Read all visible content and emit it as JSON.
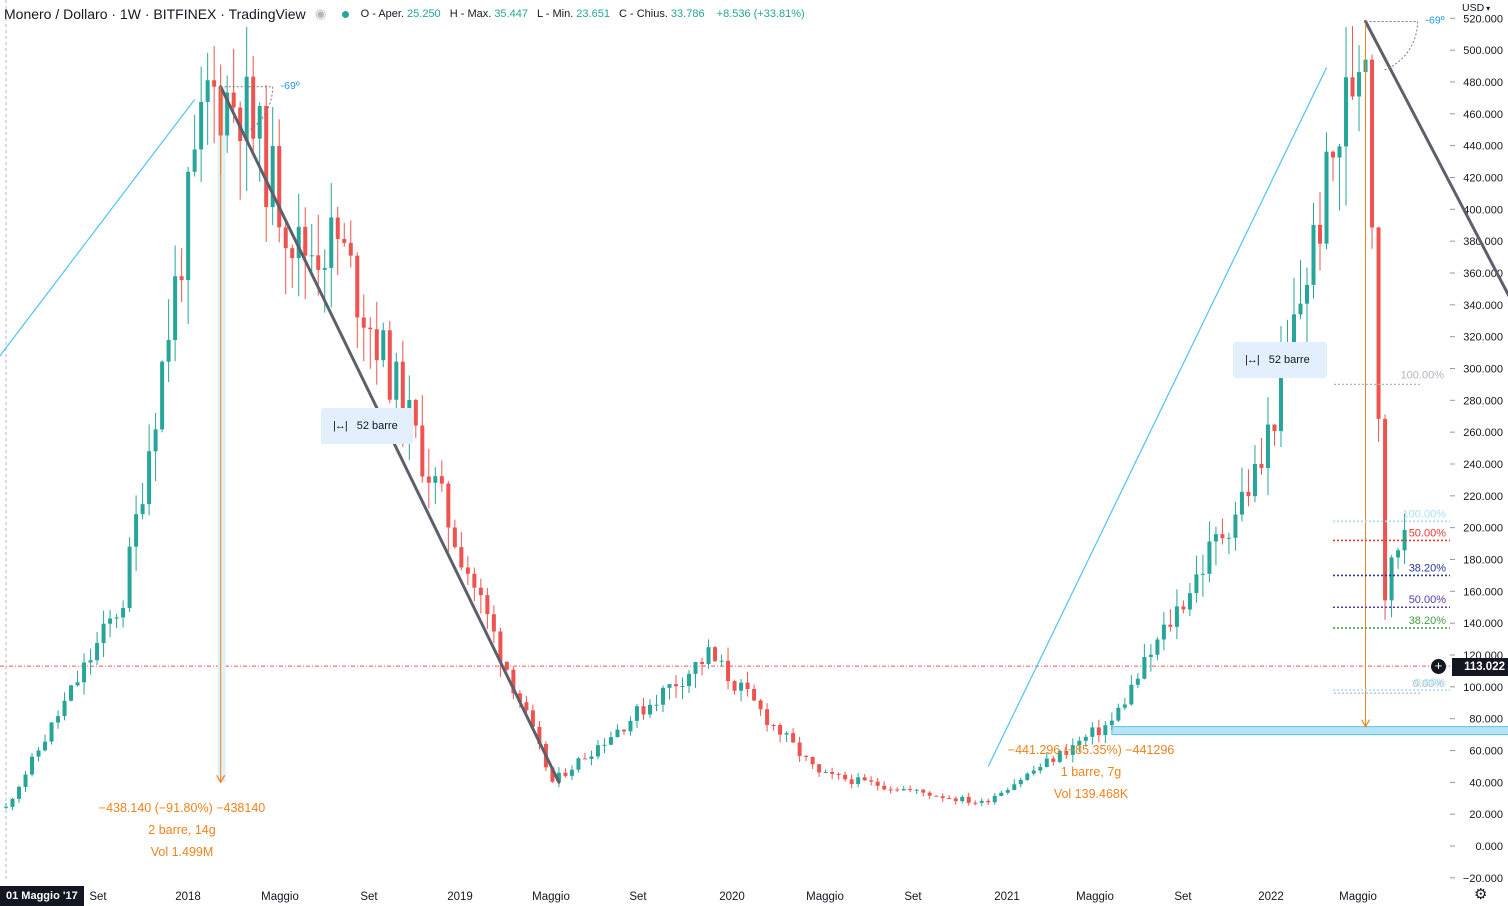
{
  "header": {
    "symbol": "Monero / Dollaro · 1W · BITFINEX · TradingView",
    "open_label": "O - Aper.",
    "open": "25.250",
    "high_label": "H - Max.",
    "high": "35.447",
    "low_label": "L - Min.",
    "low": "23.651",
    "close_label": "C - Chius.",
    "close": "33.786",
    "change": "+8.536 (+33.81%)"
  },
  "currency": "USD",
  "current_price": "113.022",
  "price_axis_ticks": [
    "520.000",
    "500.000",
    "480.000",
    "460.000",
    "440.000",
    "420.000",
    "400.000",
    "380.000",
    "360.000",
    "340.000",
    "320.000",
    "300.000",
    "280.000",
    "260.000",
    "240.000",
    "220.000",
    "200.000",
    "180.000",
    "160.000",
    "140.000",
    "120.000",
    "100.000",
    "80.000",
    "60.000",
    "40.000",
    "20.000",
    "0.000",
    "−20.000"
  ],
  "time_axis": {
    "first_badge": "01 Maggio '17",
    "labels": [
      "Set",
      "2018",
      "Maggio",
      "Set",
      "2019",
      "Maggio",
      "Set",
      "2020",
      "Maggio",
      "Set",
      "2021",
      "Maggio",
      "Set",
      "2022",
      "Maggio"
    ]
  },
  "annotations": {
    "angle_1": "-69º",
    "angle_2": "-69º",
    "bars_box_1": "52 barre",
    "bars_box_2": "52 barre",
    "measure_1": [
      "−438.140 (−91.80%) −438140",
      "2 barre, 14g",
      "Vol 1.499M"
    ],
    "measure_2": [
      "−441.296 (−85.35%) −441296",
      "1 barre, 7g",
      "Vol 139.468K"
    ]
  },
  "fib_large": [
    {
      "label": "100.00%",
      "price": 290,
      "color": "#b2b5be"
    },
    {
      "label": "0.00%",
      "price": 96,
      "color": "#b2b5be"
    }
  ],
  "fib_small": [
    {
      "label": "100.00%",
      "price": 204,
      "color": "#a8dff5"
    },
    {
      "label": "50.00%",
      "price": 192,
      "color": "#e53935"
    },
    {
      "label": "38.20%",
      "price": 170,
      "color": "#283593"
    },
    {
      "label": "50.00%",
      "price": 150,
      "color": "#5e35b1"
    },
    {
      "label": "38.20%",
      "price": 137,
      "color": "#43a047"
    },
    {
      "label": "0.00%",
      "price": 98,
      "color": "#a8dff5"
    }
  ],
  "chart_data": {
    "type": "candlestick",
    "title": "Monero / Dollaro · 1W · BITFINEX",
    "ylim": [
      -20,
      520
    ],
    "x_range": [
      "2017-05-01",
      "2022-07-18"
    ],
    "colors": {
      "up": "#26a69a",
      "down": "#ef5350",
      "trendline": "#5d606b",
      "support": "#4fc3f7",
      "zone": "#b9e4f5",
      "pivot": "#f0821e"
    },
    "key_points": [
      {
        "date": "2017-05-01",
        "price": 24
      },
      {
        "date": "2017-09-04",
        "price": 155
      },
      {
        "date": "2017-12-04",
        "price": 472
      },
      {
        "date": "2018-01-08",
        "price": 470
      },
      {
        "date": "2018-03-12",
        "price": 375
      },
      {
        "date": "2018-04-23",
        "price": 380
      },
      {
        "date": "2018-12-10",
        "price": 40
      },
      {
        "date": "2019-05-27",
        "price": 120
      },
      {
        "date": "2019-09-23",
        "price": 45
      },
      {
        "date": "2020-03-16",
        "price": 27
      },
      {
        "date": "2020-08-03",
        "price": 78
      },
      {
        "date": "2021-01-11",
        "price": 240
      },
      {
        "date": "2021-05-03",
        "price": 517
      },
      {
        "date": "2021-05-24",
        "price": 160
      },
      {
        "date": "2021-08-16",
        "price": 338
      },
      {
        "date": "2021-12-13",
        "price": 200
      },
      {
        "date": "2022-03-14",
        "price": 135
      },
      {
        "date": "2022-04-11",
        "price": 291
      },
      {
        "date": "2022-06-13",
        "price": 97
      },
      {
        "date": "2022-06-20",
        "price": 113
      }
    ],
    "trendlines": [
      {
        "name": "resistance_1",
        "from": {
          "date": "2017-12-18",
          "price": 477
        },
        "to": {
          "date": "2018-12-17",
          "price": 40
        }
      },
      {
        "name": "resistance_2",
        "from": {
          "date": "2021-05-03",
          "price": 518
        },
        "to": {
          "date": "2022-05-30",
          "price": 80
        }
      },
      {
        "name": "support_1",
        "from": {
          "date": "2016-12-05",
          "price": 200
        },
        "to": {
          "date": "2017-11-20",
          "price": 469
        }
      },
      {
        "name": "support_2",
        "from": {
          "date": "2020-03-23",
          "price": 50
        },
        "to": {
          "date": "2021-03-22",
          "price": 489
        }
      }
    ],
    "zone": {
      "from_date": "2020-08-03",
      "to_date": "2022-07-18",
      "price_low": 70,
      "price_high": 75
    },
    "measures": [
      {
        "date": "2017-12-18",
        "from_price": 477,
        "to_price": 40
      },
      {
        "date": "2021-05-03",
        "from_price": 517,
        "to_price": 75
      }
    ]
  }
}
